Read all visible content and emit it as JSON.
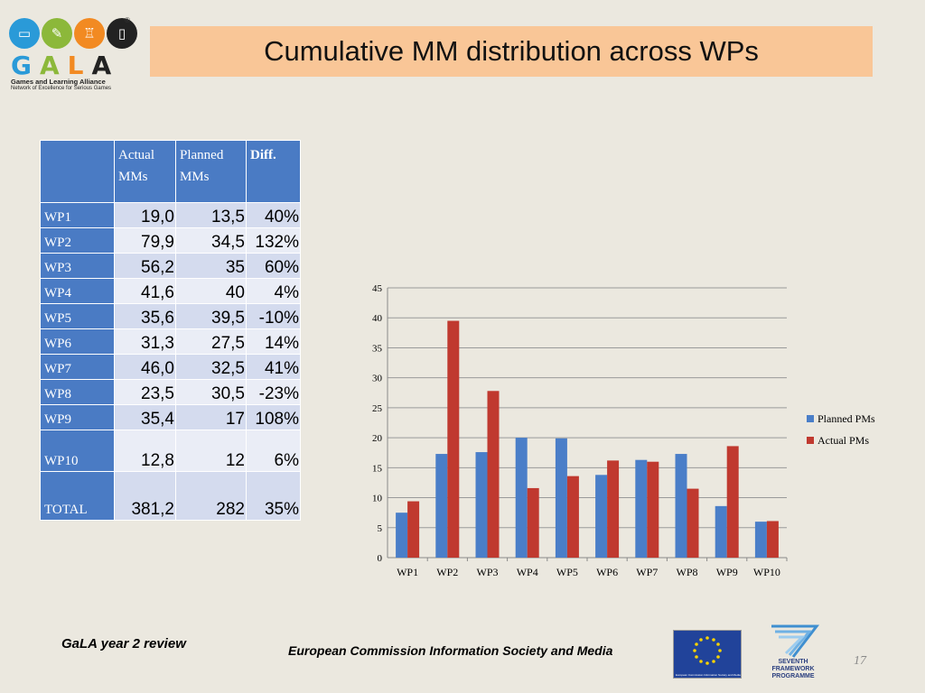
{
  "logo": {
    "letters": "GALA",
    "line1": "Games and Learning Alliance",
    "line2": "Network of Excellence for Serious Games",
    "registered": "®",
    "colors": [
      "#2a9ad8",
      "#8cb83a",
      "#f28a22",
      "#222222"
    ],
    "icons": [
      "monitor-icon",
      "pen-icon",
      "joystick-icon",
      "book-icon"
    ]
  },
  "title": "Cumulative MM distribution across WPs",
  "table": {
    "headers": [
      "",
      "Actual MMs",
      "Planned MMs",
      "Diff."
    ],
    "rows": [
      {
        "wp": "WP1",
        "actual": "19,0",
        "planned": "13,5",
        "diff": "40%"
      },
      {
        "wp": "WP2",
        "actual": "79,9",
        "planned": "34,5",
        "diff": "132%"
      },
      {
        "wp": "WP3",
        "actual": "56,2",
        "planned": "35",
        "diff": "60%"
      },
      {
        "wp": "WP4",
        "actual": "41,6",
        "planned": "40",
        "diff": "4%"
      },
      {
        "wp": "WP5",
        "actual": "35,6",
        "planned": "39,5",
        "diff": "-10%"
      },
      {
        "wp": "WP6",
        "actual": "31,3",
        "planned": "27,5",
        "diff": "14%"
      },
      {
        "wp": "WP7",
        "actual": "46,0",
        "planned": "32,5",
        "diff": "41%"
      },
      {
        "wp": "WP8",
        "actual": "23,5",
        "planned": "30,5",
        "diff": "-23%"
      },
      {
        "wp": "WP9",
        "actual": "35,4",
        "planned": "17",
        "diff": "108%"
      },
      {
        "wp": "WP10",
        "actual": "12,8",
        "planned": "12",
        "diff": "6%"
      },
      {
        "wp": "TOTAL",
        "actual": "381,2",
        "planned": "282",
        "diff": "35%"
      }
    ]
  },
  "chart_data": {
    "type": "bar",
    "categories": [
      "WP1",
      "WP2",
      "WP3",
      "WP4",
      "WP5",
      "WP6",
      "WP7",
      "WP8",
      "WP9",
      "WP10"
    ],
    "series": [
      {
        "name": "Planned PMs",
        "color": "#4a7ec8",
        "values": [
          7.5,
          17.3,
          17.6,
          20.0,
          19.9,
          13.8,
          16.3,
          17.3,
          8.6,
          6.0
        ]
      },
      {
        "name": "Actual PMs",
        "color": "#c0392f",
        "values": [
          9.4,
          39.5,
          27.8,
          11.6,
          13.6,
          16.2,
          16.0,
          11.5,
          18.6,
          6.1
        ]
      }
    ],
    "ylim": [
      0,
      45
    ],
    "yticks": [
      0,
      5,
      10,
      15,
      20,
      25,
      30,
      35,
      40,
      45
    ],
    "grid": true,
    "legend": "right"
  },
  "footer": {
    "left": "GaLA year 2 review",
    "center": "European Commission Information Society and Media",
    "page": "17",
    "fp7_line1": "SEVENTH FRAMEWORK",
    "fp7_line2": "PROGRAMME",
    "flag_caption": "European Commission Information Society and Media"
  }
}
